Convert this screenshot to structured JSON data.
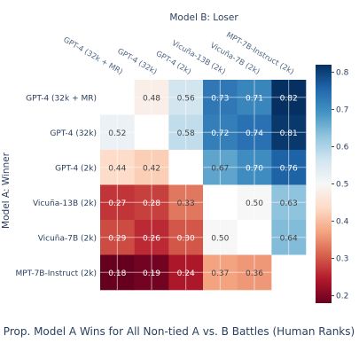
{
  "chart_data": {
    "type": "heatmap",
    "title": "Prop. Model A Wins for All Non-tied A vs. B Battles (Human Ranks)",
    "xlabel": "Model B: Loser",
    "ylabel": "Model A: Winner",
    "x_categories": [
      "GPT-4 (32k + MR)",
      "GPT-4 (32k)",
      "GPT-4 (2k)",
      "Vicuña-13B (2k)",
      "Vicuña-7B (2k)",
      "MPT-7B-Instruct (2k)"
    ],
    "y_categories": [
      "GPT-4 (32k + MR)",
      "GPT-4 (32k)",
      "GPT-4 (2k)",
      "Vicuña-13B (2k)",
      "Vicuña-7B (2k)",
      "MPT-7B-Instruct (2k)"
    ],
    "values": [
      [
        null,
        0.48,
        0.56,
        0.73,
        0.71,
        0.82
      ],
      [
        0.52,
        null,
        0.58,
        0.72,
        0.74,
        0.81
      ],
      [
        0.44,
        0.42,
        null,
        0.67,
        0.7,
        0.76
      ],
      [
        0.27,
        0.28,
        0.33,
        null,
        0.5,
        0.63
      ],
      [
        0.29,
        0.26,
        0.3,
        0.5,
        null,
        0.64
      ],
      [
        0.18,
        0.19,
        0.24,
        0.37,
        0.36,
        null
      ]
    ],
    "labels": [
      [
        "",
        "0.48",
        "0.56",
        "0.73",
        "0.71",
        "0.82"
      ],
      [
        "0.52",
        "",
        "0.58",
        "0.72",
        "0.74",
        "0.81"
      ],
      [
        "0.44",
        "0.42",
        "",
        "0.67",
        "0.70",
        "0.76"
      ],
      [
        "0.27",
        "0.28",
        "0.33",
        "",
        "0.50",
        "0.63"
      ],
      [
        "0.29",
        "0.26",
        "0.30",
        "0.50",
        "",
        "0.64"
      ],
      [
        "0.18",
        "0.19",
        "0.24",
        "0.37",
        "0.36",
        ""
      ]
    ],
    "colorscale": "RdBu",
    "zrange": [
      0.18,
      0.82
    ],
    "colorbar_ticks": [
      0.2,
      0.3,
      0.4,
      0.5,
      0.6,
      0.7,
      0.8
    ],
    "colorbar_tick_labels": [
      "0.2",
      "0.3",
      "0.4",
      "0.5",
      "0.6",
      "0.7",
      "0.8"
    ],
    "diagonal_color": "#ffffff",
    "grid": true
  }
}
